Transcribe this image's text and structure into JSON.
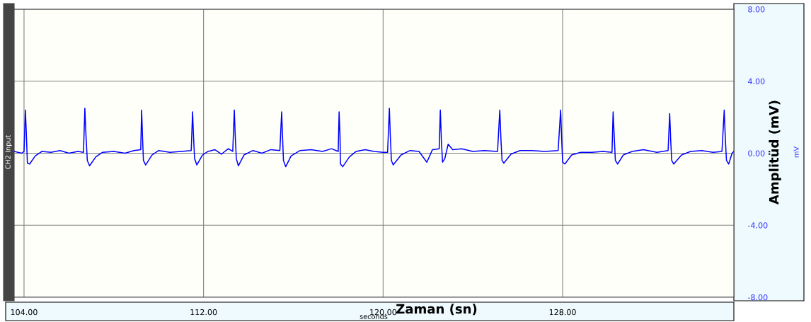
{
  "chart_data": {
    "type": "line",
    "xlabel": "Zaman (sn)",
    "ylabel": "Amplitüd (mV)",
    "annotations": [
      "CH2 Input",
      "seconds",
      "mV"
    ],
    "xlim": [
      103.56,
      135.63
    ],
    "xticks": [
      {
        "value": 104,
        "label": "104.00"
      },
      {
        "value": 112,
        "label": "112.00"
      },
      {
        "value": 120,
        "label": "120.00"
      },
      {
        "value": 128,
        "label": "128.00"
      }
    ],
    "ylim": [
      -8,
      8
    ],
    "yticks": [
      {
        "value": -8,
        "label": "-8.00"
      },
      {
        "value": -4,
        "label": "-4.00"
      },
      {
        "value": 0,
        "label": "0.00"
      },
      {
        "value": 4,
        "label": "4.00"
      },
      {
        "value": 8,
        "label": "8.00"
      }
    ],
    "grid": true,
    "legend": false,
    "marker": "none",
    "line_style": "solid",
    "series": [
      {
        "color": "#0000ff",
        "x": [
          103.56,
          103.9,
          104.0,
          104.06,
          104.1,
          104.15,
          104.25,
          104.5,
          104.8,
          105.2,
          105.6,
          106.0,
          106.4,
          106.65,
          106.71,
          106.76,
          106.82,
          106.92,
          107.2,
          107.5,
          108.0,
          108.5,
          108.9,
          109.2,
          109.24,
          109.28,
          109.32,
          109.42,
          109.7,
          110.0,
          110.5,
          111.0,
          111.45,
          111.51,
          111.55,
          111.6,
          111.7,
          111.95,
          112.2,
          112.5,
          112.8,
          113.1,
          113.3,
          113.37,
          113.41,
          113.46,
          113.55,
          113.8,
          114.2,
          114.6,
          115.0,
          115.4,
          115.48,
          115.52,
          115.56,
          115.66,
          115.9,
          116.3,
          116.8,
          117.3,
          117.7,
          118.0,
          118.04,
          118.08,
          118.1,
          118.2,
          118.5,
          118.8,
          119.2,
          119.6,
          120.0,
          120.2,
          120.28,
          120.32,
          120.37,
          120.45,
          120.8,
          121.2,
          121.6,
          121.95,
          122.2,
          122.5,
          122.55,
          122.6,
          122.65,
          122.75,
          122.9,
          123.1,
          123.5,
          124.0,
          124.5,
          125.1,
          125.2,
          125.25,
          125.3,
          125.38,
          125.7,
          126.1,
          126.6,
          127.2,
          127.8,
          127.91,
          127.96,
          128.0,
          128.1,
          128.4,
          128.8,
          129.3,
          129.8,
          130.2,
          130.25,
          130.3,
          130.35,
          130.45,
          130.7,
          131.1,
          131.6,
          132.2,
          132.7,
          132.77,
          132.82,
          132.86,
          132.95,
          133.3,
          133.7,
          134.2,
          134.7,
          135.1,
          135.2,
          135.25,
          135.3,
          135.4,
          135.55,
          135.63
        ],
        "values": [
          0.1,
          0.0,
          0.1,
          2.4,
          1.2,
          -0.55,
          -0.6,
          -0.15,
          0.1,
          0.05,
          0.15,
          0.0,
          0.1,
          0.05,
          2.5,
          1.0,
          -0.4,
          -0.7,
          -0.2,
          0.05,
          0.1,
          0.0,
          0.15,
          0.2,
          2.4,
          0.9,
          -0.4,
          -0.65,
          -0.1,
          0.15,
          0.05,
          0.1,
          0.15,
          2.3,
          1.0,
          -0.3,
          -0.65,
          -0.1,
          0.1,
          0.2,
          -0.05,
          0.25,
          0.1,
          2.4,
          1.0,
          -0.3,
          -0.7,
          -0.1,
          0.15,
          0.0,
          0.2,
          0.15,
          2.3,
          0.9,
          -0.4,
          -0.75,
          -0.15,
          0.15,
          0.2,
          0.1,
          0.25,
          0.1,
          2.3,
          1.0,
          -0.6,
          -0.75,
          -0.2,
          0.1,
          0.2,
          0.1,
          0.05,
          0.05,
          2.5,
          1.0,
          -0.4,
          -0.65,
          -0.1,
          0.15,
          0.1,
          -0.5,
          0.2,
          0.25,
          2.4,
          0.6,
          -0.5,
          -0.3,
          0.5,
          0.2,
          0.25,
          0.1,
          0.15,
          0.1,
          2.4,
          0.8,
          -0.4,
          -0.55,
          -0.05,
          0.15,
          0.15,
          0.1,
          0.15,
          2.4,
          0.7,
          -0.5,
          -0.6,
          -0.1,
          0.05,
          0.05,
          0.1,
          0.05,
          2.3,
          0.9,
          -0.4,
          -0.6,
          -0.1,
          0.1,
          0.2,
          0.05,
          0.15,
          2.2,
          0.6,
          -0.4,
          -0.6,
          -0.1,
          0.1,
          0.15,
          0.05,
          0.1,
          2.4,
          0.8,
          -0.4,
          -0.6,
          0.0,
          0.1
        ]
      }
    ]
  }
}
